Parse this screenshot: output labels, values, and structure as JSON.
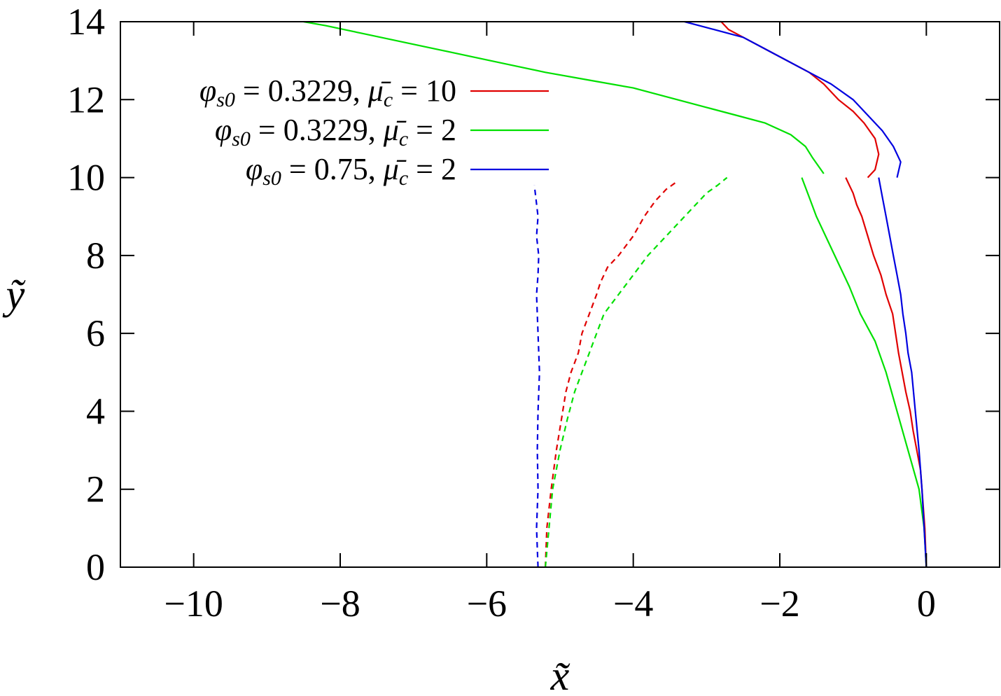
{
  "chart_data": {
    "type": "line",
    "xlabel": "x̃",
    "ylabel": "ỹ",
    "xlim": [
      -11,
      1
    ],
    "ylim": [
      0,
      14
    ],
    "xticks": [
      -10,
      -8,
      -6,
      -4,
      -2,
      0
    ],
    "yticks": [
      0,
      2,
      4,
      6,
      8,
      10,
      12,
      14
    ],
    "xtick_labels": [
      "−10",
      "−8",
      "−6",
      "−4",
      "−2",
      "0"
    ],
    "ytick_labels": [
      "0",
      "2",
      "4",
      "6",
      "8",
      "10",
      "12",
      "14"
    ],
    "grid": false,
    "legend_position": "top-left",
    "legend": [
      {
        "phi": "0.3229",
        "mu": "10",
        "color": "#e00000"
      },
      {
        "phi": "0.3229",
        "mu": "2",
        "color": "#00e000"
      },
      {
        "phi": "0.75",
        "mu": "2",
        "color": "#0000e0"
      }
    ],
    "series": [
      {
        "legend_index": 0,
        "color": "#e00000",
        "dash": "solid",
        "x": [
          0.0,
          -0.02,
          -0.08,
          -0.18,
          -0.22,
          -0.28,
          -0.38,
          -0.46,
          -0.55,
          -0.62,
          -0.72,
          -0.8,
          -0.88,
          -0.95,
          -1.0,
          -1.05,
          -1.1
        ],
        "y": [
          0.0,
          1.0,
          2.5,
          3.5,
          4.0,
          4.5,
          5.5,
          6.5,
          7.0,
          7.5,
          8.0,
          8.5,
          9.0,
          9.3,
          9.6,
          9.8,
          10.0
        ]
      },
      {
        "legend_index": 0,
        "color": "#e00000",
        "dash": "solid",
        "x": [
          -0.8,
          -0.7,
          -0.65,
          -0.7,
          -0.85,
          -1.0,
          -1.2,
          -1.4,
          -1.6,
          -1.8,
          -2.1,
          -2.4,
          -2.6,
          -2.7,
          -2.8,
          -3.0
        ],
        "y": [
          10.0,
          10.2,
          10.6,
          11.0,
          11.4,
          11.7,
          12.0,
          12.4,
          12.7,
          12.9,
          13.2,
          13.5,
          13.7,
          13.8,
          14.0,
          14.0
        ]
      },
      {
        "legend_index": 0,
        "color": "#e00000",
        "dash": "dashed",
        "x": [
          -5.2,
          -5.18,
          -5.12,
          -5.05,
          -4.98,
          -4.92,
          -4.85,
          -4.75,
          -4.7,
          -4.6,
          -4.5,
          -4.45,
          -4.35,
          -4.2,
          -4.0,
          -3.85,
          -3.7,
          -3.55,
          -3.4
        ],
        "y": [
          0.0,
          1.0,
          2.0,
          3.0,
          3.8,
          4.5,
          5.0,
          5.5,
          6.0,
          6.5,
          7.0,
          7.3,
          7.7,
          8.0,
          8.5,
          9.0,
          9.4,
          9.7,
          9.9
        ]
      },
      {
        "legend_index": 1,
        "color": "#00e000",
        "dash": "solid",
        "x": [
          0.0,
          -0.03,
          -0.1,
          -0.25,
          -0.4,
          -0.55,
          -0.7,
          -0.9,
          -1.05,
          -1.2,
          -1.35,
          -1.5,
          -1.6,
          -1.7
        ],
        "y": [
          0.0,
          1.0,
          2.0,
          3.0,
          4.0,
          5.0,
          5.8,
          6.5,
          7.2,
          7.8,
          8.4,
          9.0,
          9.5,
          10.0
        ]
      },
      {
        "legend_index": 1,
        "color": "#00e000",
        "dash": "solid",
        "x": [
          -1.4,
          -1.55,
          -1.65,
          -1.85,
          -2.2,
          -2.6,
          -3.0,
          -3.4,
          -4.0,
          -4.6,
          -5.2,
          -5.7,
          -6.2,
          -6.7,
          -7.2,
          -7.7,
          -8.2,
          -8.5
        ],
        "y": [
          10.1,
          10.5,
          10.8,
          11.1,
          11.4,
          11.6,
          11.8,
          12.0,
          12.3,
          12.5,
          12.7,
          12.9,
          13.1,
          13.3,
          13.5,
          13.7,
          13.9,
          14.0
        ]
      },
      {
        "legend_index": 1,
        "color": "#00e000",
        "dash": "dashed",
        "x": [
          -5.2,
          -5.15,
          -5.1,
          -5.0,
          -4.9,
          -4.8,
          -4.7,
          -4.6,
          -4.5,
          -4.4,
          -4.2,
          -4.0,
          -3.8,
          -3.6,
          -3.4,
          -3.2,
          -3.0,
          -2.85,
          -2.72
        ],
        "y": [
          0.0,
          1.0,
          2.0,
          3.0,
          3.8,
          4.5,
          5.0,
          5.5,
          6.0,
          6.5,
          7.0,
          7.5,
          8.0,
          8.4,
          8.8,
          9.2,
          9.6,
          9.8,
          10.0
        ]
      },
      {
        "legend_index": 2,
        "color": "#0000e0",
        "dash": "solid",
        "x": [
          0.0,
          -0.03,
          -0.06,
          -0.1,
          -0.15,
          -0.2,
          -0.25,
          -0.28,
          -0.32,
          -0.35,
          -0.4,
          -0.45,
          -0.5,
          -0.55,
          -0.6,
          -0.65
        ],
        "y": [
          0.0,
          1.0,
          2.0,
          3.0,
          4.0,
          5.0,
          5.5,
          6.0,
          6.5,
          7.0,
          7.5,
          8.0,
          8.5,
          9.0,
          9.5,
          10.0
        ]
      },
      {
        "legend_index": 2,
        "color": "#0000e0",
        "dash": "solid",
        "x": [
          -0.4,
          -0.35,
          -0.45,
          -0.6,
          -0.8,
          -1.0,
          -1.3,
          -1.6,
          -1.9,
          -2.1,
          -2.3,
          -2.5,
          -2.7,
          -2.9,
          -3.1,
          -3.3
        ],
        "y": [
          10.0,
          10.4,
          10.8,
          11.2,
          11.6,
          12.0,
          12.4,
          12.7,
          13.0,
          13.2,
          13.4,
          13.6,
          13.7,
          13.8,
          13.9,
          14.0
        ]
      },
      {
        "legend_index": 2,
        "color": "#0000e0",
        "dash": "dashed",
        "x": [
          -5.3,
          -5.32,
          -5.3,
          -5.31,
          -5.3,
          -5.28,
          -5.3,
          -5.32,
          -5.3,
          -5.29,
          -5.32,
          -5.3,
          -5.35
        ],
        "y": [
          0.0,
          1.0,
          2.0,
          3.0,
          4.0,
          5.0,
          6.0,
          7.0,
          7.5,
          8.0,
          8.5,
          9.0,
          9.8
        ]
      }
    ]
  }
}
